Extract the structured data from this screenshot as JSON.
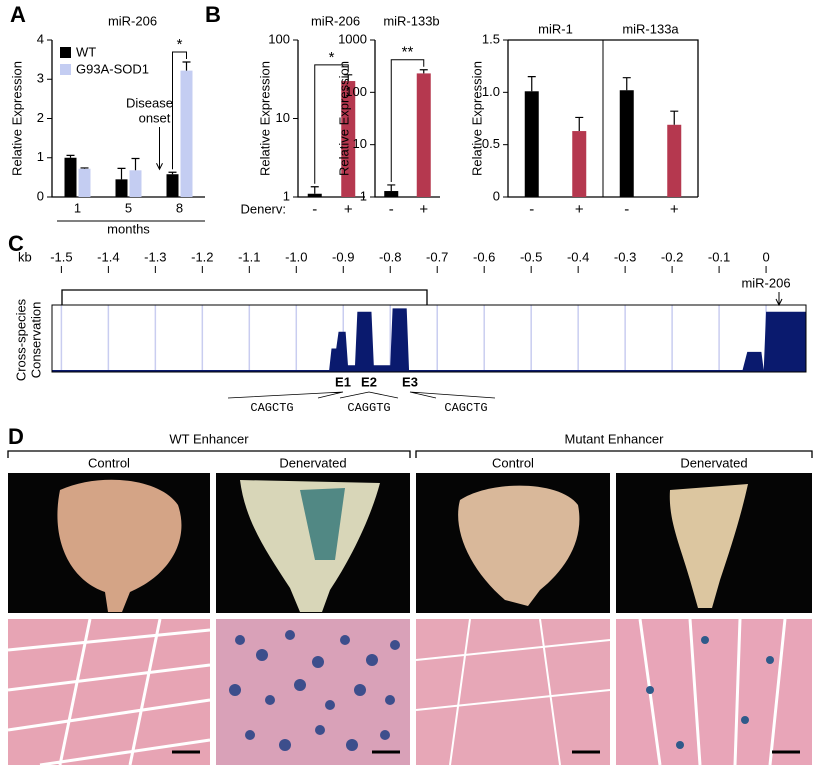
{
  "panel_labels": [
    "A",
    "B",
    "C",
    "D"
  ],
  "chart_data": [
    {
      "type": "bar",
      "title": "miR-206",
      "ylabel": "Relative Expression",
      "xlabel": "months",
      "categories": [
        "1",
        "5",
        "8"
      ],
      "series": [
        {
          "name": "WT",
          "color": "#000000",
          "values": [
            1.0,
            0.45,
            0.58
          ],
          "errors": [
            0.06,
            0.28,
            0.05
          ]
        },
        {
          "name": "G93A-SOD1",
          "color": "#c4cdf2",
          "values": [
            0.72,
            0.68,
            3.22
          ],
          "errors": [
            0.02,
            0.3,
            0.22
          ]
        }
      ],
      "ylim": [
        0,
        4
      ],
      "yticks": [
        0,
        1,
        2,
        3,
        4
      ],
      "significance": "*",
      "onset_label": [
        "Disease",
        "onset"
      ]
    },
    {
      "type": "bar",
      "title": "miR-206",
      "ylabel": "Relative Expression",
      "xlabel": "Denerv:",
      "categories": [
        "-",
        "+"
      ],
      "values": [
        1.1,
        30
      ],
      "errors": [
        0.25,
        6
      ],
      "colors": [
        "#000000",
        "#b5384f"
      ],
      "log_scale": true,
      "ylim": [
        1,
        100
      ],
      "yticks": [
        1,
        10,
        100
      ],
      "significance": "*"
    },
    {
      "type": "bar",
      "title": "miR-133b",
      "ylabel": "Relative Expression",
      "categories": [
        "-",
        "+"
      ],
      "values": [
        1.3,
        230
      ],
      "errors": [
        0.4,
        40
      ],
      "colors": [
        "#000000",
        "#b5384f"
      ],
      "log_scale": true,
      "ylim": [
        1,
        1000
      ],
      "yticks": [
        1,
        10,
        100,
        1000
      ],
      "significance": "**"
    },
    {
      "type": "grouped",
      "ylabel": "Relative Expression",
      "colors": [
        "#000000",
        "#b5384f"
      ],
      "ylim": [
        0,
        1.5
      ],
      "yticks": [
        0,
        0.5,
        {
          "value": 1,
          "label": "1.0"
        },
        1.5
      ],
      "groups": [
        {
          "title": "miR-1",
          "categories": [
            "-",
            "+"
          ],
          "values": [
            1.01,
            0.63
          ],
          "errors": [
            0.14,
            0.13
          ]
        },
        {
          "title": "miR-133a",
          "categories": [
            "-",
            "+"
          ],
          "values": [
            1.02,
            0.69
          ],
          "errors": [
            0.12,
            0.13
          ]
        }
      ]
    },
    {
      "type": "area",
      "xlabel": "kb",
      "ylabel": [
        "Cross-species",
        "Conservation"
      ],
      "color": "#0a1a6e",
      "xlim": [
        -1.52,
        0.085
      ],
      "ylim": [
        0,
        1
      ],
      "xticks": [
        -1.5,
        -1.4,
        -1.3,
        -1.2,
        -1.1,
        {
          "value": -1,
          "label": "-1.0"
        },
        -0.9,
        -0.8,
        -0.7,
        -0.6,
        -0.5,
        -0.4,
        -0.3,
        -0.2,
        -0.1,
        0
      ],
      "x": [
        -1.52,
        -0.93,
        -0.925,
        -0.915,
        -0.91,
        -0.895,
        -0.89,
        -0.875,
        -0.87,
        -0.84,
        -0.835,
        -0.8,
        -0.795,
        -0.765,
        -0.76,
        -0.05,
        -0.04,
        -0.01,
        -0.005,
        0.0,
        0.085
      ],
      "values": [
        0.03,
        0.03,
        0.35,
        0.35,
        0.6,
        0.6,
        0.1,
        0.1,
        0.9,
        0.9,
        0.1,
        0.1,
        0.95,
        0.95,
        0.03,
        0.03,
        0.3,
        0.3,
        0.03,
        0.9,
        0.9
      ],
      "gene": "miR-206",
      "elements": [
        "E1",
        "E2",
        "E3"
      ],
      "motifs": [
        "CAGCTG",
        "CAGGTG",
        "CAGCTG"
      ]
    }
  ],
  "panel_d": {
    "groups": [
      {
        "title": "WT Enhancer",
        "columns": [
          "Control",
          "Denervated"
        ]
      },
      {
        "title": "Mutant Enhancer",
        "columns": [
          "Control",
          "Denervated"
        ]
      }
    ]
  }
}
